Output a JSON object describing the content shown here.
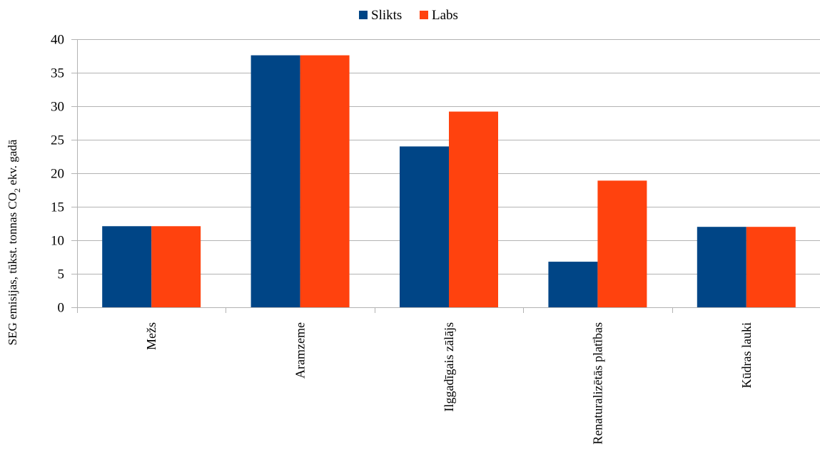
{
  "chart_data": {
    "type": "bar",
    "title": "",
    "xlabel": "",
    "ylabel": "SEG emisijas, tūkst. tonnas CO2 ekv. gadā",
    "ylabel_parts": {
      "before": "SEG emisijas, tūkst. tonnas CO",
      "subscript": "2",
      "after": " ekv. gadā"
    },
    "categories": [
      "Mežs",
      "Aramzeme",
      "Ilggadīgais zālājs",
      "Renaturalizētās platības",
      "Kūdras lauki"
    ],
    "series": [
      {
        "name": "Slikts",
        "color": "#004586",
        "values": [
          12.1,
          37.6,
          24.0,
          6.8,
          12.0
        ]
      },
      {
        "name": "Labs",
        "color": "#ff420e",
        "values": [
          12.1,
          37.6,
          29.2,
          18.9,
          12.0
        ]
      }
    ],
    "ylim": [
      0,
      40
    ],
    "yticks": [
      "0",
      "5",
      "10",
      "15",
      "20",
      "25",
      "30",
      "35",
      "40"
    ],
    "grid": true,
    "legend_position": "top-center",
    "grid_color": "#b3b3b3"
  }
}
